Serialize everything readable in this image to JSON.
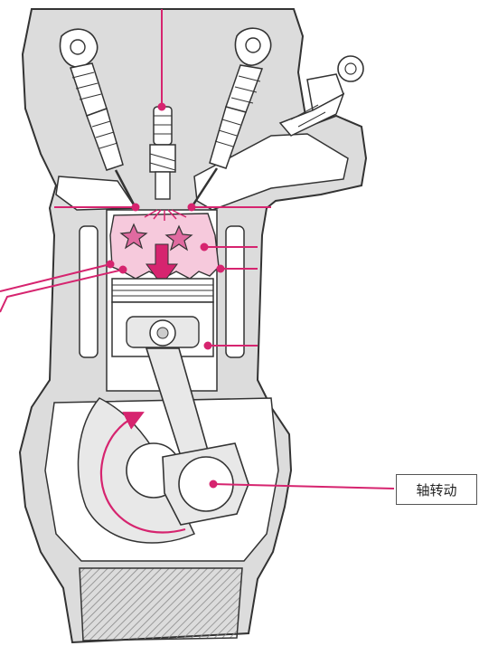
{
  "labels": {
    "crankshaft_rotation": "轴转动"
  },
  "colors": {
    "accent": "#d6246f",
    "combustion_fill": "#f6c9dc",
    "outline": "#333333",
    "block_fill": "#dcdcdc",
    "oil_hatch": "#8a8a8a"
  }
}
